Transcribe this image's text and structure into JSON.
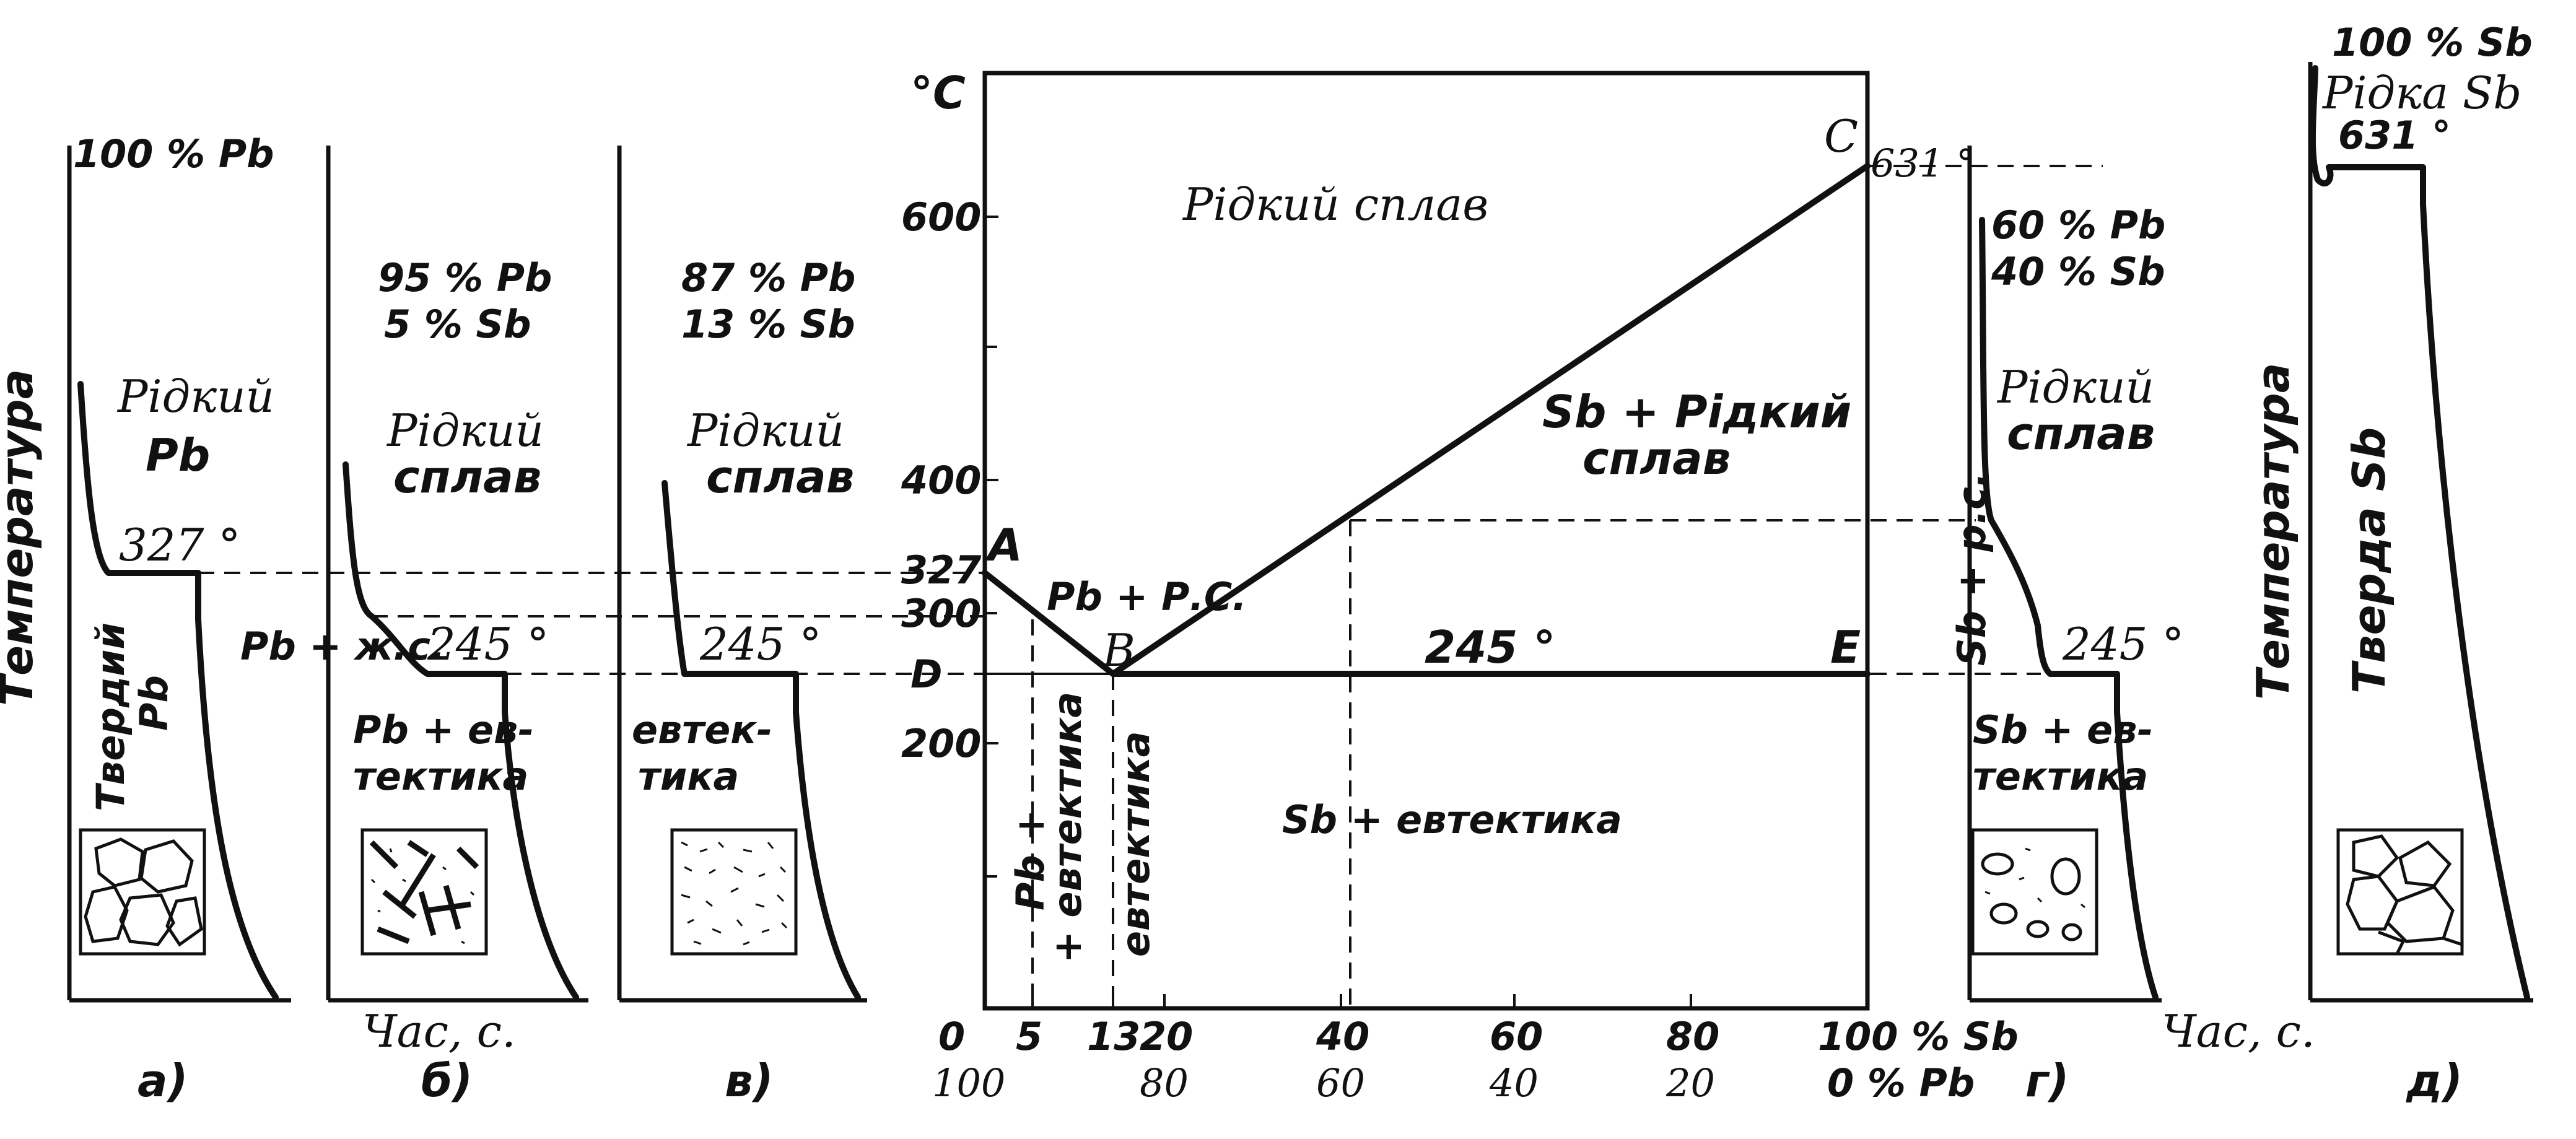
{
  "panels": {
    "a": {
      "letter": "a)",
      "comp": "100 % Pb",
      "liquid_1": "Рідкий",
      "liquid_2": "Pb",
      "temp": "327 °",
      "solid_1": "Твердий",
      "solid_2": "Pb"
    },
    "b": {
      "letter": "б)",
      "comp_1": "95 % Pb",
      "comp_2": "5 % Sb",
      "liquid_1": "Рідкий",
      "liquid_2": "сплав",
      "mix": "Pb + ж.с.",
      "temp": "245 °",
      "solid_1": "Pb + ев-",
      "solid_2": "тектика",
      "time_label": "Час, с."
    },
    "v": {
      "letter": "в)",
      "comp_1": "87 % Pb",
      "comp_2": "13 % Sb",
      "liquid_1": "Рідкий",
      "liquid_2": "сплав",
      "temp": "245 °",
      "solid_1": "евтек-",
      "solid_2": "тика"
    },
    "g": {
      "letter": "г)",
      "comp_1": "60 % Pb",
      "comp_2": "40 % Sb",
      "liquid_1": "Рідкий",
      "liquid_2": "сплав",
      "mix": "Sb + p.c.",
      "temp": "245 °",
      "solid_1": "Sb + ев-",
      "solid_2": "тектика",
      "time_label": "Час, с."
    },
    "d": {
      "letter": "д)",
      "comp": "100 % Sb",
      "liquid": "Рідка Sb",
      "temp": "631 °",
      "solid": "Тверда Sb",
      "ylabel": "Температура"
    }
  },
  "left_ylabel": "Температура",
  "diagram": {
    "unit": "°C",
    "y_ticks": [
      "600",
      "400",
      "327",
      "300",
      "D",
      "200"
    ],
    "x_top": [
      "0",
      "5",
      "13",
      "20",
      "40",
      "60",
      "80",
      "100 % Sb"
    ],
    "x_bottom": [
      "100",
      "80",
      "60",
      "40",
      "20",
      "0 % Pb"
    ],
    "points": {
      "A": "A",
      "B": "B",
      "C": "C",
      "E": "E",
      "c_temp": "631 °"
    },
    "regions": {
      "liquid": "Рідкий сплав",
      "sb_liquid_1": "Sb + Рідкий",
      "sb_liquid_2": "сплав",
      "pb_liquid": "Pb + Р.С.",
      "eutectic_temp": "245 °",
      "pb_eutectic_1": "Pb +",
      "pb_eutectic_2": "+ евтектика",
      "eutectic": "евтектика",
      "sb_eutectic": "Sb + евтектика"
    }
  },
  "chart_data": {
    "type": "line",
    "xlabel": "% Sb",
    "ylabel": "°C",
    "series": [
      {
        "values": [
          [
            0,
            327
          ],
          [
            13,
            245
          ]
        ]
      },
      {
        "values": [
          [
            13,
            245
          ],
          [
            100,
            631
          ]
        ]
      },
      {
        "values": [
          [
            0,
            245
          ],
          [
            100,
            245
          ]
        ]
      }
    ],
    "annotations": [
      {
        "label": "A",
        "x": 0,
        "y": 327
      },
      {
        "label": "B",
        "x": 13,
        "y": 245
      },
      {
        "label": "C",
        "x": 100,
        "y": 631
      },
      {
        "label": "E",
        "x": 100,
        "y": 245
      }
    ]
  }
}
